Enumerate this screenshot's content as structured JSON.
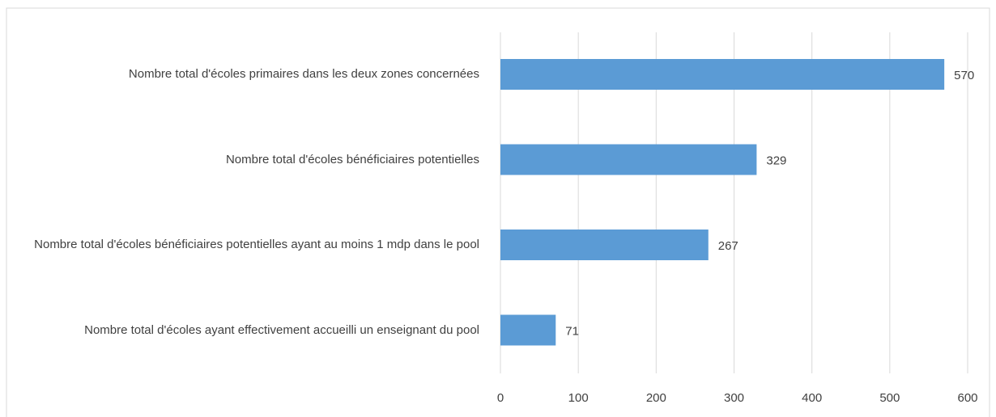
{
  "chart_data": {
    "type": "bar",
    "orientation": "horizontal",
    "categories": [
      "Nombre total d'écoles primaires dans les deux zones concernées",
      "Nombre total d'écoles bénéficiaires potentielles",
      "Nombre total d'écoles bénéficiaires potentielles ayant au moins 1 mdp dans le pool",
      "Nombre total d'écoles ayant effectivement accueilli un enseignant du pool"
    ],
    "values": [
      570,
      329,
      267,
      71
    ],
    "color": "#5b9bd5",
    "xlim": [
      0,
      600
    ],
    "xticks": [
      0,
      100,
      200,
      300,
      400,
      500,
      600
    ],
    "grid": true
  }
}
